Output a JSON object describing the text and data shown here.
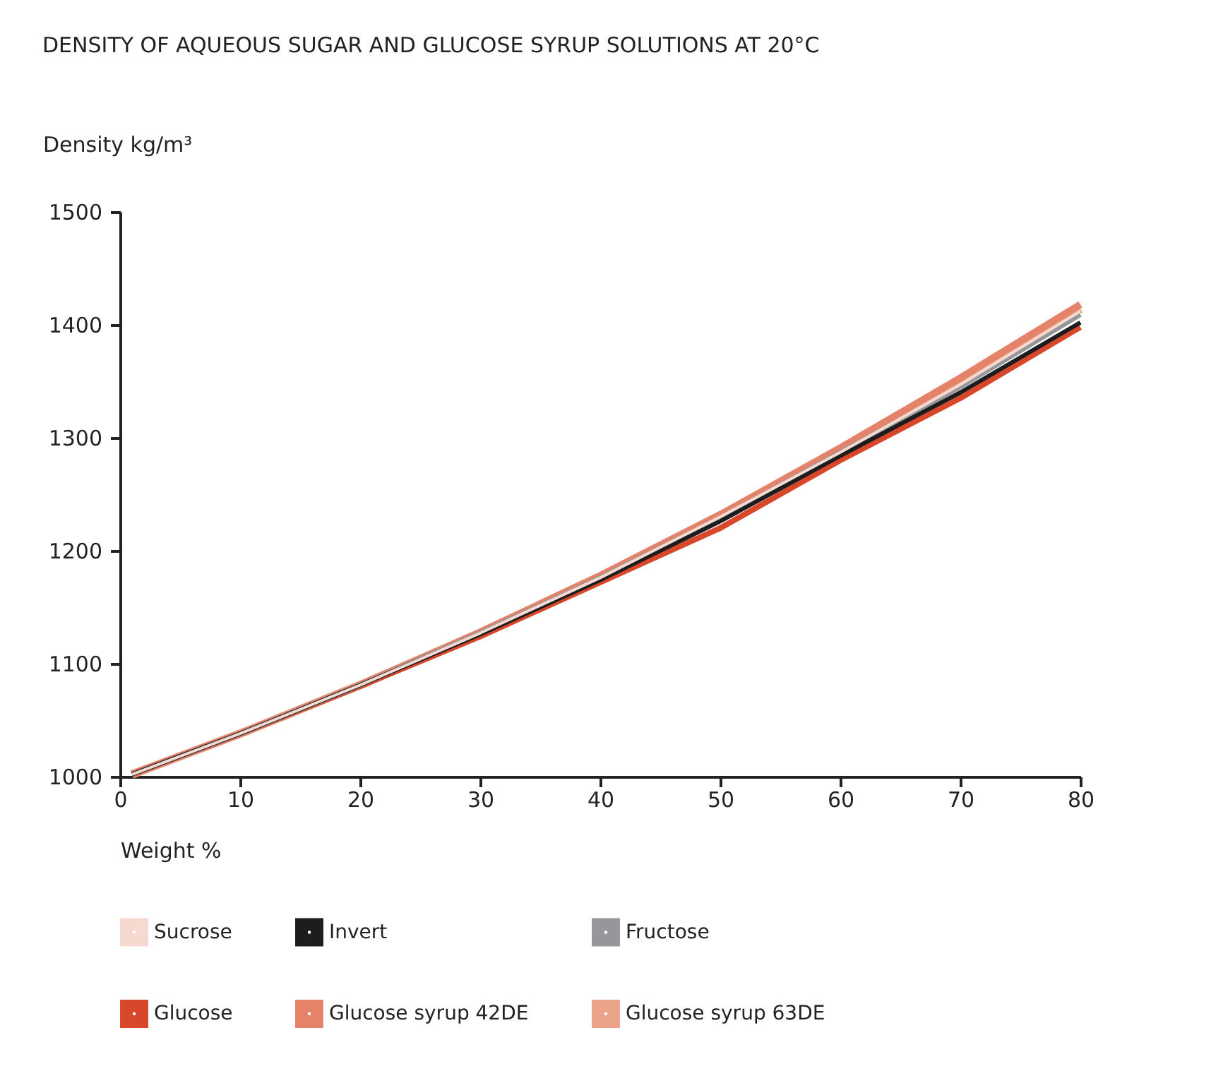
{
  "chart_data": {
    "type": "line",
    "title": "DENSITY OF AQUEOUS SUGAR AND GLUCOSE SYRUP SOLUTIONS AT 20°C",
    "xlabel": "Weight %",
    "ylabel": "Density kg/m³",
    "x": [
      1,
      10,
      20,
      30,
      40,
      50,
      60,
      70,
      80
    ],
    "series": [
      {
        "name": "Sucrose",
        "color": "#f6d9cf",
        "values": [
          1002,
          1038,
          1081,
          1127,
          1176,
          1230,
          1287,
          1347,
          1412
        ]
      },
      {
        "name": "Invert",
        "color": "#1d1d1f",
        "values": [
          1002,
          1038,
          1081,
          1126,
          1174,
          1226,
          1284,
          1340,
          1402
        ]
      },
      {
        "name": "Fructose",
        "color": "#97969b",
        "values": [
          1002,
          1038,
          1081,
          1127,
          1176,
          1229,
          1287,
          1345,
          1409
        ]
      },
      {
        "name": "Glucose",
        "color": "#d9472b",
        "values": [
          1002,
          1038,
          1080,
          1124,
          1172,
          1220,
          1280,
          1335,
          1398
        ]
      },
      {
        "name": "Glucose syrup 42DE",
        "color": "#e5826a",
        "values": [
          1002,
          1038,
          1081,
          1128,
          1178,
          1232,
          1291,
          1353,
          1418
        ]
      },
      {
        "name": "Glucose syrup 63DE",
        "color": "#eba389",
        "values": [
          1002,
          1038,
          1081,
          1127,
          1177,
          1231,
          1289,
          1350,
          1414
        ]
      }
    ],
    "xlim": [
      0,
      80
    ],
    "xticks": [
      0,
      10,
      20,
      30,
      40,
      50,
      60,
      70,
      80
    ],
    "ylim": [
      1000,
      1500
    ],
    "yticks": [
      1000,
      1100,
      1200,
      1300,
      1400,
      1500
    ],
    "grid": false,
    "legend": "bottom",
    "marker": "none",
    "line_style": "solid"
  }
}
